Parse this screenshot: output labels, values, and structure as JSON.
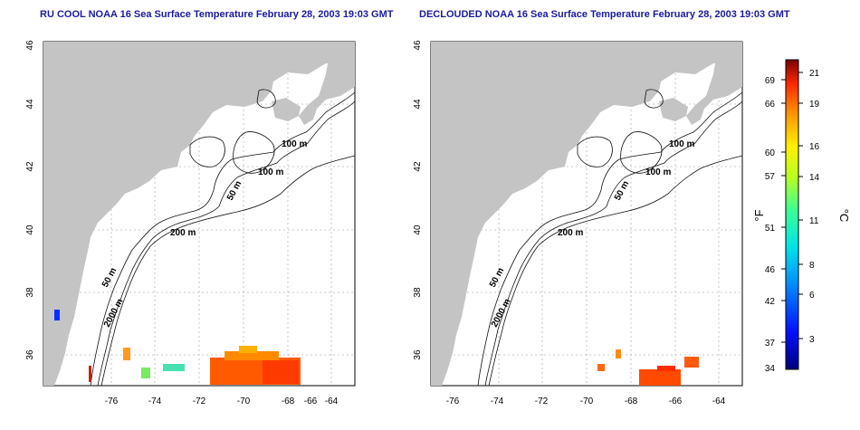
{
  "panels": [
    {
      "title": "RU COOL NOAA 16 Sea Surface Temperature February 28, 2003 19:03 GMT",
      "x_ticks": [
        "-76",
        "-74",
        "-72",
        "-70",
        "-68",
        "-66",
        "-64"
      ],
      "y_ticks": [
        "36",
        "38",
        "40",
        "42",
        "44",
        "46"
      ],
      "contour_labels": [
        "100 m",
        "100 m",
        "50 m",
        "200 m",
        "50 m",
        "2000 m"
      ]
    },
    {
      "title": "DECLOUDED NOAA 16 Sea Surface Temperature February 28, 2003 19:03 GMT",
      "x_ticks": [
        "-76",
        "-74",
        "-72",
        "-70",
        "-68",
        "-66",
        "-64"
      ],
      "y_ticks": [
        "36",
        "38",
        "40",
        "42",
        "44",
        "46"
      ],
      "contour_labels": [
        "100 m",
        "100 m",
        "50 m",
        "200 m",
        "50 m",
        "2000 m"
      ]
    }
  ],
  "colorbar": {
    "fahrenheit_label": "°F",
    "celsius_label": "°C",
    "fahrenheit_ticks": [
      "69",
      "66",
      "60",
      "57",
      "51",
      "46",
      "42",
      "37",
      "34"
    ],
    "celsius_ticks": [
      "21",
      "19",
      "16",
      "14",
      "11",
      "8",
      "6",
      "3"
    ]
  },
  "colors": {
    "title": "#1a1aa0",
    "land": "#c4c4c4",
    "ocean": "#ffffff",
    "contour": "#111111",
    "grid": "#b5b5b5"
  }
}
